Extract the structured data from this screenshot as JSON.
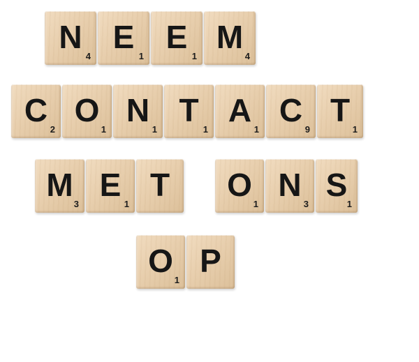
{
  "rows": [
    {
      "word": "NEEM",
      "tiles": [
        {
          "letter": "N",
          "score": "4"
        },
        {
          "letter": "E",
          "score": "1"
        },
        {
          "letter": "E",
          "score": "1"
        },
        {
          "letter": "M",
          "score": "4"
        }
      ]
    },
    {
      "word": "CONTACT",
      "tiles": [
        {
          "letter": "C",
          "score": "2"
        },
        {
          "letter": "O",
          "score": "1"
        },
        {
          "letter": "N",
          "score": "1"
        },
        {
          "letter": "T",
          "score": "1"
        },
        {
          "letter": "A",
          "score": "1"
        },
        {
          "letter": "C",
          "score": "9"
        },
        {
          "letter": "T",
          "score": "1"
        }
      ]
    },
    {
      "word": "MET",
      "tiles": [
        {
          "letter": "M",
          "score": "3"
        },
        {
          "letter": "E",
          "score": "1"
        },
        {
          "letter": "T",
          "score": ""
        }
      ]
    },
    {
      "word": "ONS",
      "tiles": [
        {
          "letter": "O",
          "score": "1"
        },
        {
          "letter": "N",
          "score": "3"
        },
        {
          "letter": "S",
          "score": "1"
        }
      ]
    },
    {
      "word": "OP",
      "tiles": [
        {
          "letter": "O",
          "score": "1"
        },
        {
          "letter": "P",
          "score": ""
        }
      ]
    }
  ],
  "colors": {
    "background": "#ffffff",
    "tile": "#e8cfae",
    "ink": "#161616"
  }
}
